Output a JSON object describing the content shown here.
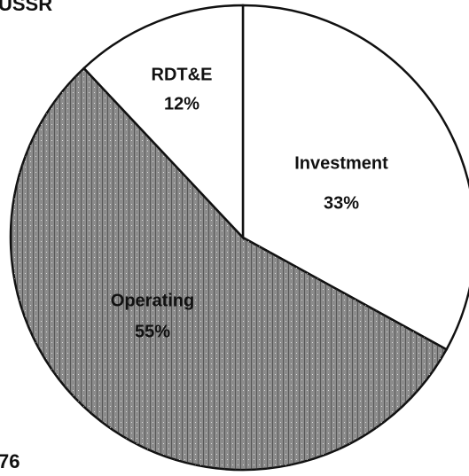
{
  "chart_data": {
    "type": "pie",
    "title": "USSR",
    "annotation": "76",
    "categories": [
      "Investment",
      "Operating",
      "RDT&E"
    ],
    "values": [
      33,
      55,
      12
    ],
    "value_labels": [
      "33%",
      "55%",
      "12%"
    ],
    "colors": [
      "#ffffff",
      "#8c8c8c",
      "#ffffff"
    ]
  }
}
